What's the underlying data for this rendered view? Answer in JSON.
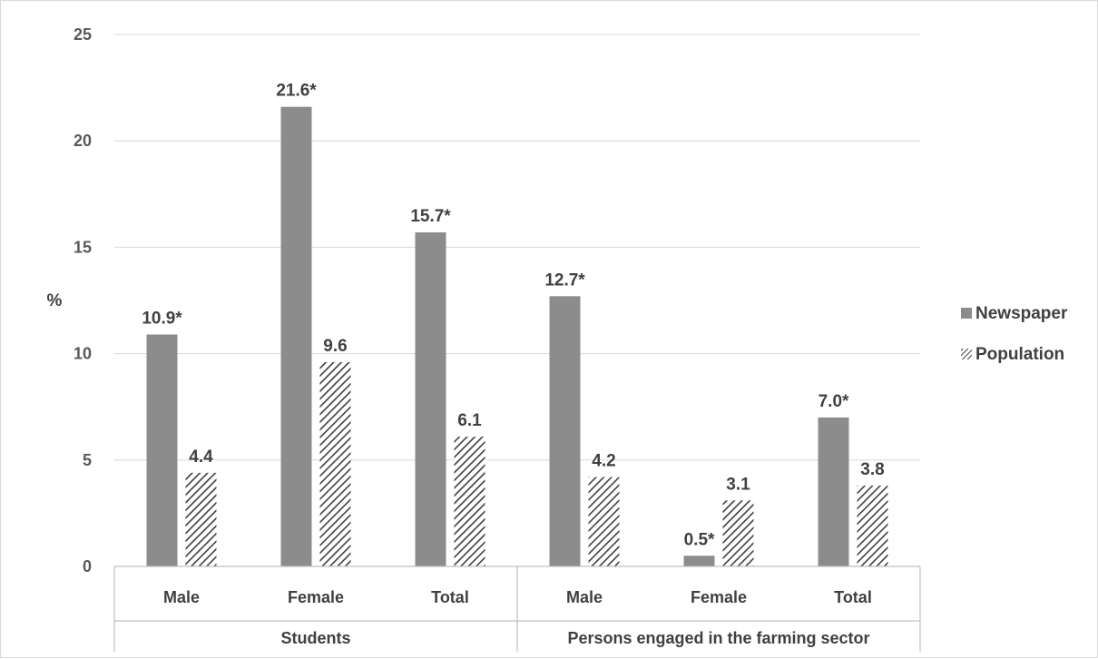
{
  "chart_data": {
    "type": "bar",
    "title": "",
    "ylabel": "%",
    "xlabel": "",
    "ylim": [
      0,
      25
    ],
    "yticks": [
      0,
      5,
      10,
      15,
      20,
      25
    ],
    "grid": true,
    "legend_position": "right",
    "groups": [
      {
        "label": "Students",
        "categories": [
          "Male",
          "Female",
          "Total"
        ]
      },
      {
        "label": "Persons engaged in the farming sector",
        "categories": [
          "Male",
          "Female",
          "Total"
        ]
      }
    ],
    "series": [
      {
        "name": "Newspaper",
        "pattern": "solid",
        "color": "#8c8c8c",
        "values": [
          10.9,
          21.6,
          15.7,
          12.7,
          0.5,
          7.0
        ],
        "labels": [
          "10.9*",
          "21.6*",
          "15.7*",
          "12.7*",
          "0.5*",
          "7.0*"
        ]
      },
      {
        "name": "Population",
        "pattern": "diagonal-hatch",
        "color": "#404040",
        "values": [
          4.4,
          9.6,
          6.1,
          4.2,
          3.1,
          3.8
        ],
        "labels": [
          "4.4",
          "9.6",
          "6.1",
          "4.2",
          "3.1",
          "3.8"
        ]
      }
    ]
  }
}
